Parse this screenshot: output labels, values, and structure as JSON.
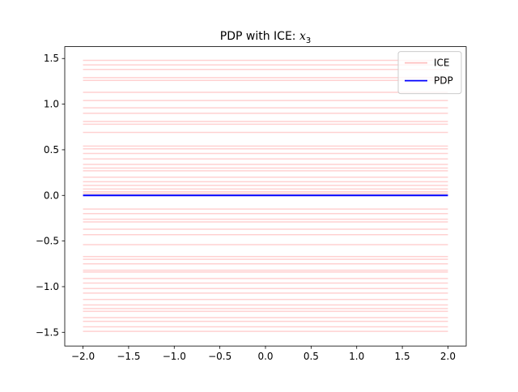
{
  "chart_data": {
    "type": "line",
    "title": [
      "PDP with ICE: ",
      "x",
      "3"
    ],
    "x": [
      -2.0,
      2.0
    ],
    "xlim": [
      -2.2,
      2.2
    ],
    "ylim": [
      -1.65,
      1.63
    ],
    "xticks": [
      {
        "value": -2,
        "label": "−2.0"
      },
      {
        "value": -1.5,
        "label": "−1.5"
      },
      {
        "value": -1,
        "label": "−1.0"
      },
      {
        "value": -0.5,
        "label": "−0.5"
      },
      {
        "value": 0,
        "label": "0.0"
      },
      {
        "value": 0.5,
        "label": "0.5"
      },
      {
        "value": 1,
        "label": "1.0"
      },
      {
        "value": 1.5,
        "label": "1.5"
      },
      {
        "value": 2,
        "label": "2.0"
      }
    ],
    "yticks": [
      {
        "value": -1.5,
        "label": "−1.5"
      },
      {
        "value": -1,
        "label": "−1.0"
      },
      {
        "value": -0.5,
        "label": "−0.5"
      },
      {
        "value": 0,
        "label": "0.0"
      },
      {
        "value": 0.5,
        "label": "0.5"
      },
      {
        "value": 1,
        "label": "1.0"
      },
      {
        "value": 1.5,
        "label": "1.5"
      }
    ],
    "ice": {
      "name": "ICE",
      "color": "#ff0000",
      "opacity": 0.18,
      "levels": [
        1.48,
        1.43,
        1.38,
        1.29,
        1.26,
        1.13,
        1.04,
        0.96,
        0.9,
        0.81,
        0.78,
        0.69,
        0.54,
        0.51,
        0.46,
        0.4,
        0.34,
        0.3,
        0.27,
        0.2,
        0.15,
        0.11,
        0.07,
        0.04,
        0.02,
        -0.15,
        -0.2,
        -0.26,
        -0.29,
        -0.37,
        -0.43,
        -0.54,
        -0.67,
        -0.7,
        -0.75,
        -0.82,
        -0.84,
        -0.91,
        -0.96,
        -1.02,
        -1.07,
        -1.14,
        -1.2,
        -1.24,
        -1.27,
        -1.34,
        -1.38,
        -1.44,
        -1.49
      ]
    },
    "series": [
      {
        "name": "PDP",
        "color": "#0000ff",
        "values": [
          0.0,
          0.0
        ]
      }
    ],
    "legend": "upper right"
  }
}
